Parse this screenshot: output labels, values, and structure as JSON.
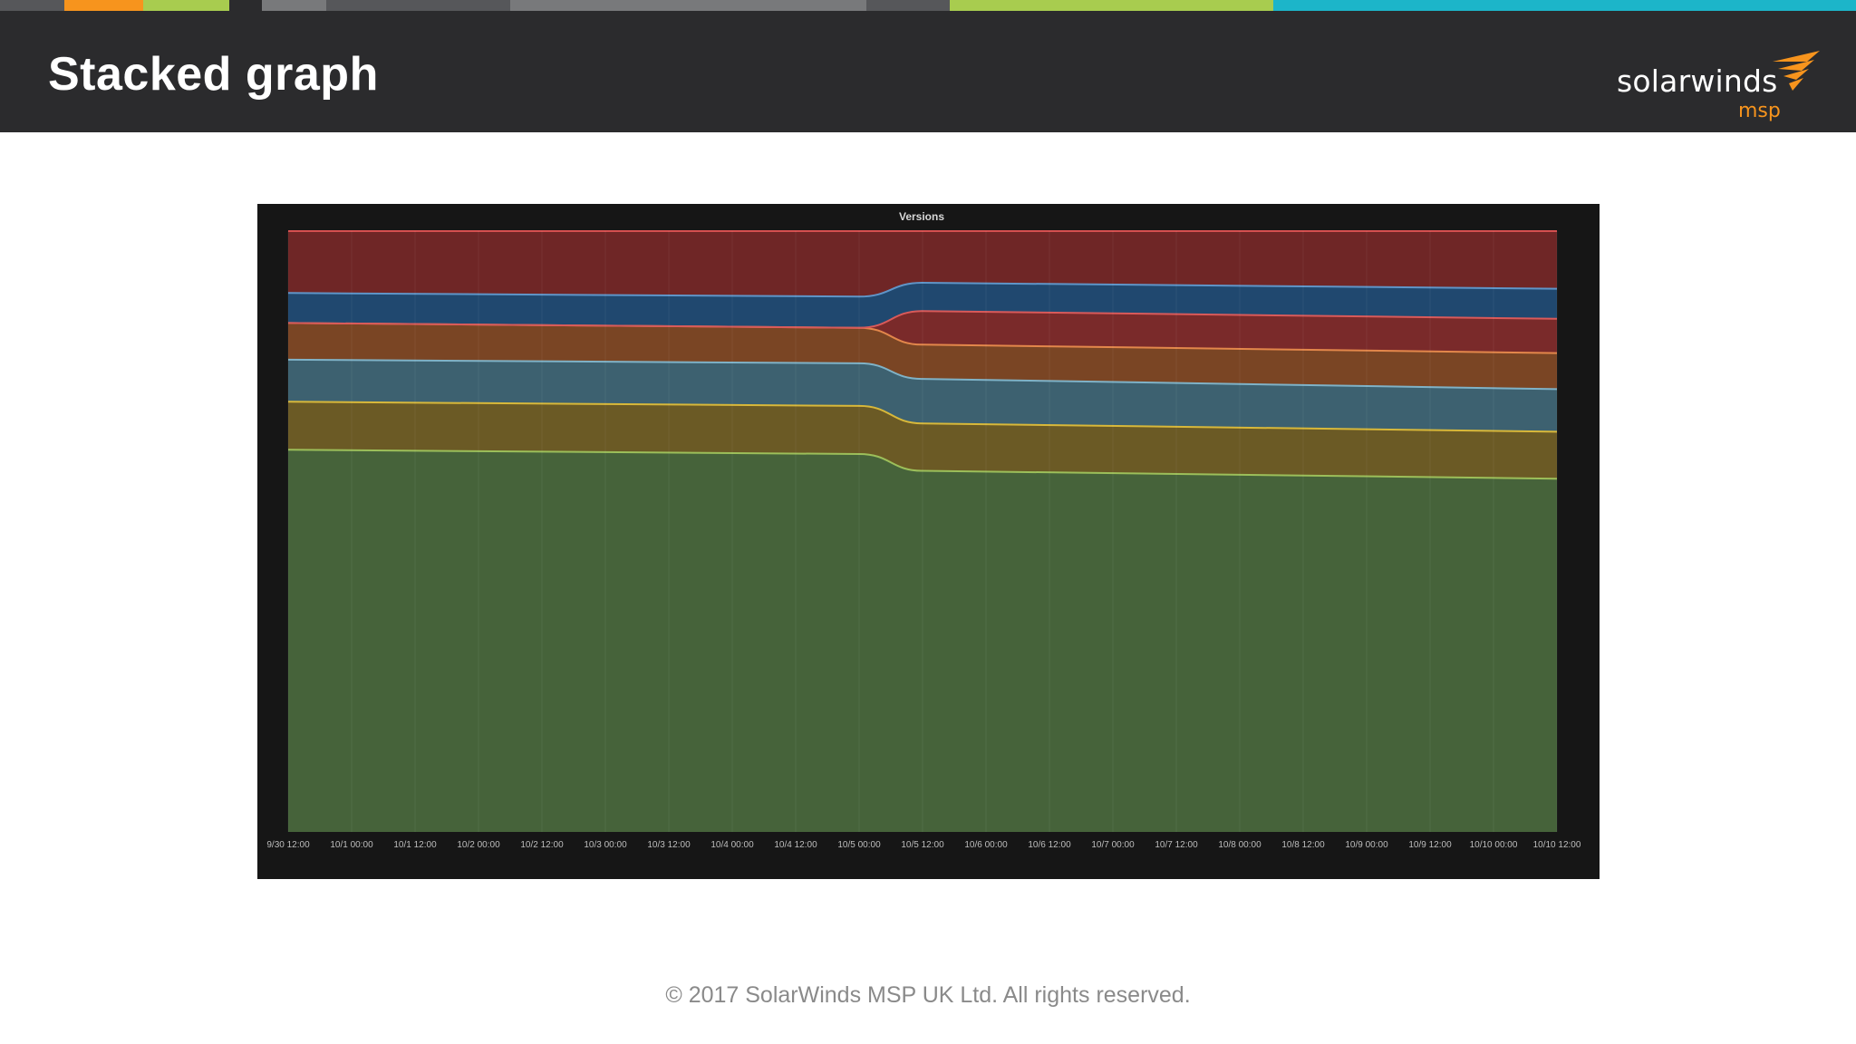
{
  "slide": {
    "title": "Stacked graph",
    "footer": "© 2017 SolarWinds MSP UK Ltd.  All rights reserved."
  },
  "logo": {
    "wordmark": "solarwinds",
    "sub": "msp",
    "icon": "solarwinds-bird-icon"
  },
  "colors": {
    "header_bg": "#2b2b2d",
    "brand_orange": "#f7941d",
    "brand_green": "#a8cc4f",
    "brand_cyan": "#1cb5c9",
    "panel_bg": "#161616"
  },
  "top_strip": [
    {
      "color": "#56575a",
      "share": 0.0345
    },
    {
      "color": "#f7941d",
      "share": 0.0425
    },
    {
      "color": "#a8cc4f",
      "share": 0.0463
    },
    {
      "color": "#2b2b2d",
      "share": 0.0179
    },
    {
      "color": "#78797b",
      "share": 0.0345
    },
    {
      "color": "#56575a",
      "share": 0.0992
    },
    {
      "color": "#78797b",
      "share": 0.1917
    },
    {
      "color": "#56575a",
      "share": 0.045
    },
    {
      "color": "#a8cc4f",
      "share": 0.1746
    },
    {
      "color": "#1cb5c9",
      "share": 0.3214
    }
  ],
  "chart_data": {
    "type": "area",
    "stacked": true,
    "title": "Versions",
    "x_ticks": [
      "9/30 12:00",
      "10/1 00:00",
      "10/1 12:00",
      "10/2 00:00",
      "10/2 12:00",
      "10/3 00:00",
      "10/3 12:00",
      "10/4 00:00",
      "10/4 12:00",
      "10/5 00:00",
      "10/5 12:00",
      "10/6 00:00",
      "10/6 12:00",
      "10/7 00:00",
      "10/7 12:00",
      "10/8 00:00",
      "10/8 12:00",
      "10/9 00:00",
      "10/9 12:00",
      "10/10 00:00",
      "10/10 12:00"
    ],
    "x": [
      "9/30 12:00",
      "10/5 00:00",
      "10/5 12:00",
      "10/10 12:00"
    ],
    "ylim": [
      0,
      100
    ],
    "grid": true,
    "legend": "none",
    "series": [
      {
        "color": "#46633a",
        "line": "#9cbf5a",
        "values": [
          63.6,
          62.9,
          60.1,
          58.8
        ]
      },
      {
        "color": "#6b5a25",
        "line": "#d8b83a",
        "values": [
          8.0,
          8.0,
          7.9,
          7.8
        ]
      },
      {
        "color": "#3d6170",
        "line": "#7fb2c7",
        "values": [
          7.0,
          7.1,
          7.4,
          7.1
        ]
      },
      {
        "color": "#7a4524",
        "line": "#e3874b",
        "values": [
          6.1,
          5.9,
          5.7,
          6.0
        ]
      },
      {
        "color": "#7a2a2a",
        "line": "#d95a5a",
        "values": [
          0.0,
          0.0,
          5.6,
          5.7
        ]
      },
      {
        "color": "#20486f",
        "line": "#5f95c8",
        "values": [
          5.0,
          5.2,
          4.7,
          5.0
        ]
      },
      {
        "color": "#6f2626",
        "line": "#d55050",
        "values": [
          10.3,
          10.9,
          8.6,
          9.6
        ]
      }
    ]
  }
}
